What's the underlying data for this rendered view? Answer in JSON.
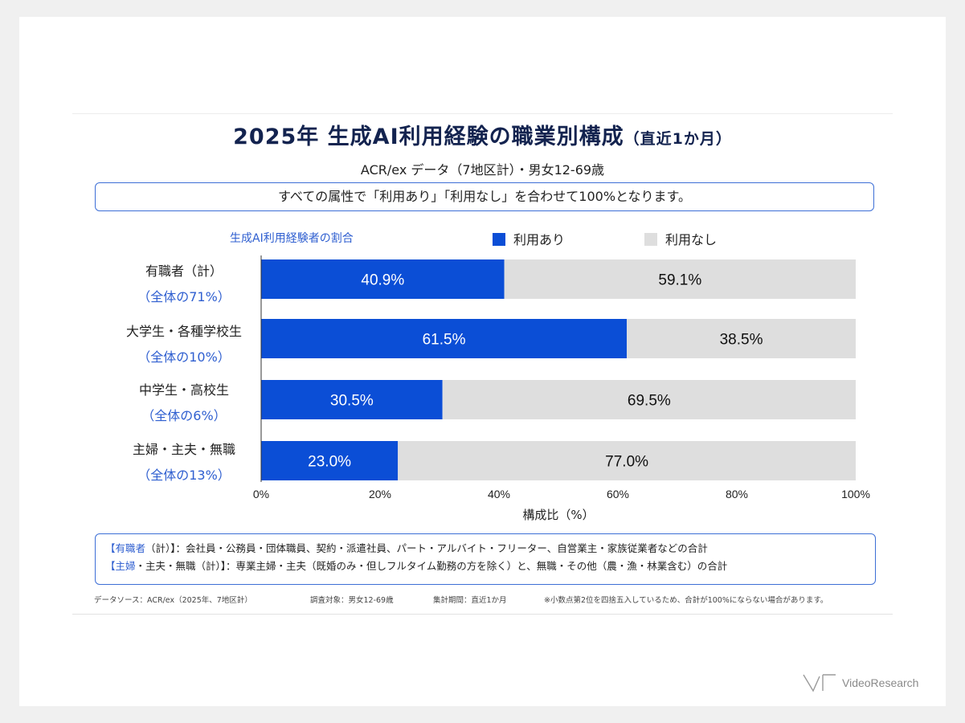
{
  "title": {
    "main": "2025年 生成AI利用経験の職業別構成",
    "sub": "（直近1か月）"
  },
  "subtitle": "ACR/ex データ（7地区計）・男女12-69歳",
  "note": "すべての属性で「利用あり」「利用なし」を合わせて100%となります。",
  "legend": {
    "title": "生成AI利用経験者の割合",
    "used": "利用あり",
    "not_used": "利用なし"
  },
  "chart_data": {
    "type": "bar",
    "orientation": "horizontal",
    "stacked": true,
    "categories": [
      {
        "label": "有職者（計）",
        "share": "（全体の71%）"
      },
      {
        "label": "大学生・各種学校生",
        "share": "（全体の10%）"
      },
      {
        "label": "中学生・高校生",
        "share": "（全体の6%）"
      },
      {
        "label": "主婦・主夫・無職",
        "share": "（全体の13%）"
      }
    ],
    "series": [
      {
        "name": "利用あり",
        "values": [
          40.9,
          61.5,
          30.5,
          23.0
        ],
        "labels": [
          "40.9%",
          "61.5%",
          "30.5%",
          "23.0%"
        ],
        "color": "#0b4ed6"
      },
      {
        "name": "利用なし",
        "values": [
          59.1,
          38.5,
          69.5,
          77.0
        ],
        "labels": [
          "59.1%",
          "38.5%",
          "69.5%",
          "77.0%"
        ],
        "color": "#dedede"
      }
    ],
    "xlim": [
      0,
      100
    ],
    "xticks": [
      "0%",
      "20%",
      "40%",
      "60%",
      "80%",
      "100%"
    ],
    "xlabel": "構成比（%）",
    "legend_position": "top"
  },
  "footnote": {
    "line1_prefix": "【",
    "line1_term": "有職者",
    "line1_rest": "（計）】：会社員・公務員・団体職員、契約・派遣社員、パート・アルバイト・フリーター、自営業主・家族従業者などの合計",
    "line2_prefix": "【",
    "line2_term": "主婦",
    "line2_rest": "・主夫・無職（計）】：専業主婦・主夫（既婚のみ・但しフルタイム勤務の方を除く）と、無職・その他（農・漁・林業含む）の合計"
  },
  "source": {
    "data_source": "データソース：ACR/ex（2025年、7地区計）",
    "target": "調査対象：男女12-69歳",
    "period": "集計期間：直近1か月",
    "rounding": "※小数点第2位を四捨五入しているため、合計が100%にならない場合があります。"
  },
  "brand": "VideoResearch",
  "colors": {
    "primary": "#0b4ed6",
    "secondary": "#dedede",
    "accent_text": "#2f5fd0",
    "title": "#13234f"
  }
}
